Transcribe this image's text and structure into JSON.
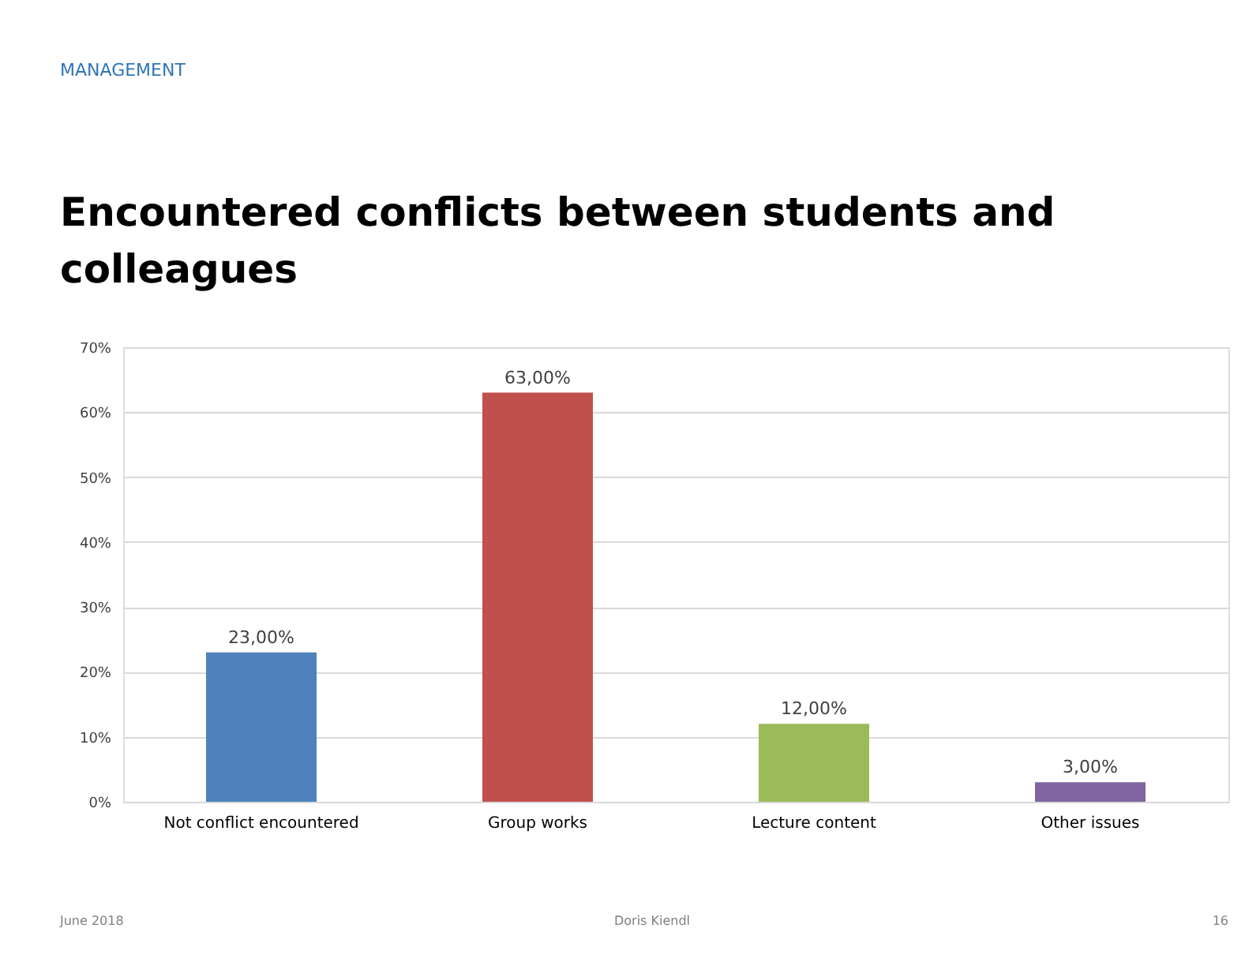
{
  "chart_data": {
    "type": "bar",
    "title": "Encountered conflicts between students and colleagues",
    "categories": [
      "Not conflict encountered",
      "Group works",
      "Lecture content",
      "Other issues"
    ],
    "values": [
      23,
      63,
      12,
      3
    ],
    "colors": [
      "#4f81bd",
      "#c0504d",
      "#9bbb59",
      "#8064a2"
    ],
    "value_labels": [
      "23,00%",
      "63,00%",
      "12,00%",
      "3,00%"
    ],
    "ylim": [
      0,
      70
    ],
    "yticks": [
      {
        "value": 0,
        "label": "0%"
      },
      {
        "value": 10,
        "label": "10%"
      },
      {
        "value": 20,
        "label": "20%"
      },
      {
        "value": 30,
        "label": "30%"
      },
      {
        "value": 40,
        "label": "40%"
      },
      {
        "value": 50,
        "label": "50%"
      },
      {
        "value": 60,
        "label": "60%"
      },
      {
        "value": 70,
        "label": "70%"
      }
    ],
    "grid": "y",
    "annotations": [
      "MANAGEMENT",
      "June 2018",
      "Doris Kiendl",
      "16"
    ]
  }
}
